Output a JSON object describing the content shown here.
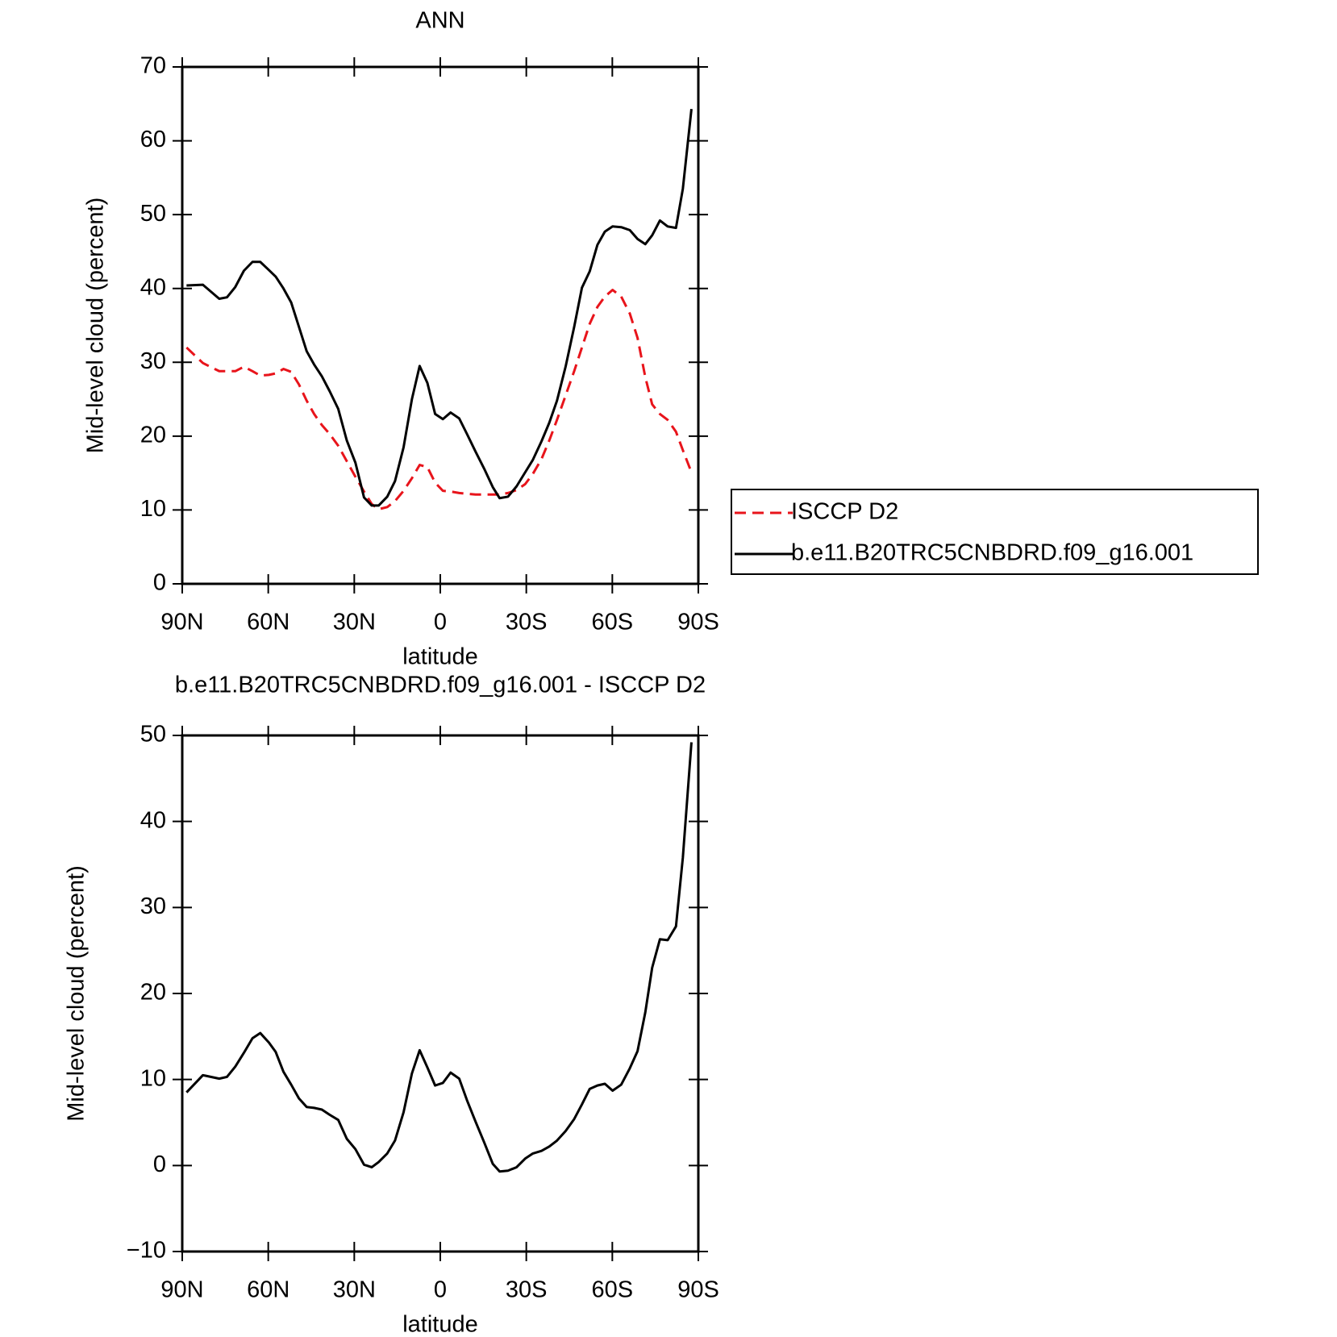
{
  "chart_data": [
    {
      "type": "line",
      "title": "ANN",
      "xlabel": "latitude",
      "ylabel": "Mid-level cloud (percent)",
      "x": [
        88.5,
        82.8,
        77.1,
        74.4,
        71.5,
        68.5,
        65.5,
        62.8,
        59.8,
        57.4,
        54.7,
        52.0,
        49.3,
        46.6,
        44.0,
        41.3,
        38.6,
        35.6,
        32.6,
        29.6,
        26.6,
        23.9,
        21.5,
        18.5,
        15.8,
        12.8,
        9.9,
        7.2,
        4.5,
        1.8,
        -0.9,
        -3.6,
        -6.6,
        -9.3,
        -12.3,
        -15.3,
        -18.3,
        -20.7,
        -23.6,
        -26.6,
        -29.6,
        -32.3,
        -35.3,
        -38.0,
        -40.7,
        -43.7,
        -46.7,
        -49.4,
        -52.1,
        -54.8,
        -57.4,
        -60.1,
        -63.1,
        -66.1,
        -68.8,
        -71.5,
        -73.9,
        -76.6,
        -79.3,
        -82.2,
        -84.6,
        -87.6
      ],
      "series": [
        {
          "name": "ISCCP D2",
          "color": "#e8141b",
          "line_style": "dashed",
          "values": [
            32.0,
            29.9,
            28.8,
            28.8,
            28.8,
            29.4,
            28.8,
            28.2,
            28.3,
            28.5,
            29.1,
            28.7,
            27.0,
            24.8,
            23.0,
            21.5,
            20.3,
            18.7,
            16.6,
            14.5,
            12.5,
            10.8,
            10.1,
            10.4,
            11.2,
            12.6,
            14.3,
            16.1,
            15.8,
            13.7,
            12.6,
            12.5,
            12.3,
            12.2,
            12.1,
            12.1,
            12.1,
            12.1,
            12.3,
            12.7,
            13.5,
            14.9,
            16.9,
            19.4,
            22.2,
            25.5,
            28.8,
            32.0,
            35.2,
            37.5,
            38.9,
            39.8,
            38.9,
            36.6,
            33.3,
            28.0,
            24.3,
            23.0,
            22.2,
            20.6,
            18.1,
            15.1
          ]
        },
        {
          "name": "b.e11.B20TRC5CNBDRD.f09_g16.001",
          "color": "#000000",
          "line_style": "solid",
          "values": [
            40.4,
            40.5,
            38.6,
            38.8,
            40.2,
            42.4,
            43.6,
            43.6,
            42.5,
            41.6,
            40.0,
            38.1,
            34.8,
            31.5,
            29.7,
            28.1,
            26.1,
            23.7,
            19.4,
            16.4,
            11.7,
            10.6,
            10.6,
            11.8,
            13.9,
            18.5,
            25.0,
            29.5,
            27.2,
            23.0,
            22.3,
            23.2,
            22.4,
            20.3,
            17.9,
            15.6,
            13.1,
            11.6,
            11.8,
            13.2,
            15.1,
            16.8,
            19.3,
            21.8,
            24.8,
            29.4,
            34.8,
            40.1,
            42.3,
            45.9,
            47.7,
            48.4,
            48.3,
            47.9,
            46.7,
            46.0,
            47.2,
            49.2,
            48.4,
            48.2,
            53.5,
            64.3
          ]
        }
      ],
      "xlim": [
        90,
        -90
      ],
      "xticks": [
        {
          "value": 90,
          "label": "90N"
        },
        {
          "value": 60,
          "label": "60N"
        },
        {
          "value": 30,
          "label": "30N"
        },
        0,
        {
          "value": -30,
          "label": "30S"
        },
        {
          "value": -60,
          "label": "60S"
        },
        {
          "value": -90,
          "label": "90S"
        }
      ],
      "ylim": [
        0,
        70
      ],
      "yticks": [
        0,
        10,
        20,
        30,
        40,
        50,
        60,
        70
      ],
      "legend": "right"
    },
    {
      "type": "line",
      "title": "b.e11.B20TRC5CNBDRD.f09_g16.001 - ISCCP D2",
      "xlabel": "latitude",
      "ylabel": "Mid-level cloud (percent)",
      "x": [
        88.5,
        82.8,
        77.1,
        74.4,
        71.5,
        68.5,
        65.5,
        62.8,
        59.8,
        57.4,
        54.7,
        52.0,
        49.3,
        46.6,
        44.0,
        41.3,
        38.6,
        35.6,
        32.6,
        29.6,
        26.6,
        23.9,
        21.5,
        18.5,
        15.8,
        12.8,
        9.9,
        7.2,
        4.5,
        1.8,
        -0.9,
        -3.6,
        -6.6,
        -9.3,
        -12.3,
        -15.3,
        -18.3,
        -20.7,
        -23.6,
        -26.6,
        -29.6,
        -32.3,
        -35.3,
        -38.0,
        -40.7,
        -43.7,
        -46.7,
        -49.4,
        -52.1,
        -54.8,
        -57.4,
        -60.1,
        -63.1,
        -66.1,
        -68.8,
        -71.5,
        -73.9,
        -76.6,
        -79.3,
        -82.2,
        -84.6,
        -87.6
      ],
      "series": [
        {
          "color": "#000000",
          "line_style": "solid",
          "values": [
            8.5,
            10.5,
            10.1,
            10.3,
            11.5,
            13.1,
            14.8,
            15.4,
            14.3,
            13.2,
            10.9,
            9.4,
            7.8,
            6.8,
            6.7,
            6.5,
            5.9,
            5.3,
            3.1,
            1.9,
            0.1,
            -0.2,
            0.4,
            1.4,
            2.9,
            6.2,
            10.7,
            13.4,
            11.4,
            9.3,
            9.6,
            10.8,
            10.1,
            7.6,
            5.1,
            2.7,
            0.2,
            -0.7,
            -0.6,
            -0.2,
            0.8,
            1.4,
            1.7,
            2.2,
            2.9,
            4.0,
            5.4,
            7.1,
            8.9,
            9.3,
            9.5,
            8.7,
            9.4,
            11.3,
            13.3,
            17.8,
            23.0,
            26.3,
            26.2,
            27.8,
            35.8,
            49.2
          ]
        }
      ],
      "xlim": [
        90,
        -90
      ],
      "xticks": [
        {
          "value": 90,
          "label": "90N"
        },
        {
          "value": 60,
          "label": "60N"
        },
        {
          "value": 30,
          "label": "30N"
        },
        0,
        {
          "value": -30,
          "label": "30S"
        },
        {
          "value": -60,
          "label": "60S"
        },
        {
          "value": -90,
          "label": "90S"
        }
      ],
      "ylim": [
        -10,
        50
      ],
      "yticks": [
        {
          "value": -10,
          "label": "−10"
        },
        0,
        10,
        20,
        30,
        40,
        50
      ]
    }
  ]
}
